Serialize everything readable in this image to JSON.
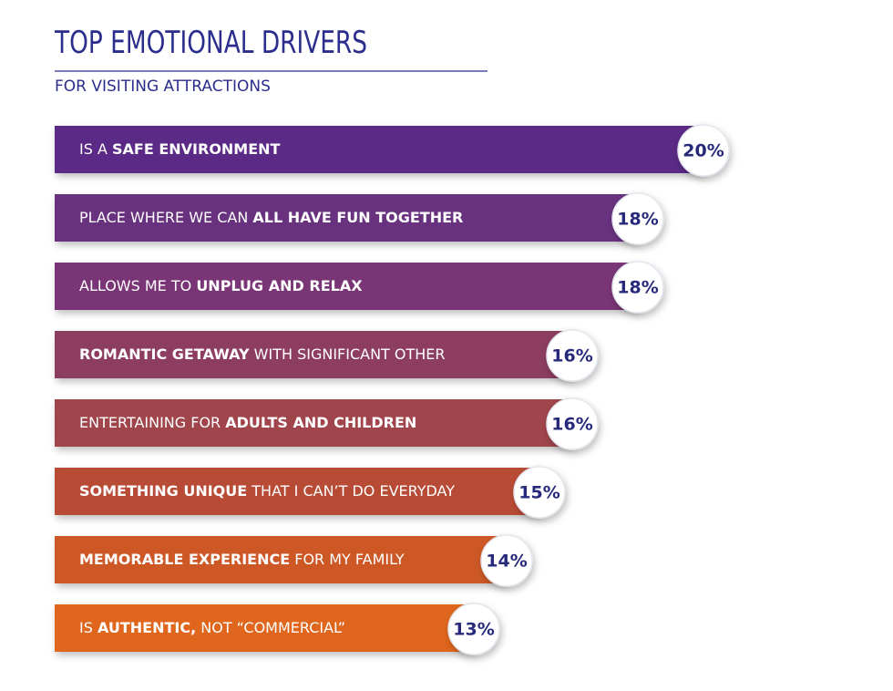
{
  "chart_data": {
    "type": "bar",
    "title": "TOP EMOTIONAL DRIVERS",
    "subtitle": "FOR VISITING ATTRACTIONS",
    "categories": [
      [
        {
          "text": "IS A ",
          "bold": false
        },
        {
          "text": "SAFE ENVIRONMENT",
          "bold": true
        }
      ],
      [
        {
          "text": "PLACE WHERE WE CAN ",
          "bold": false
        },
        {
          "text": "ALL HAVE FUN TOGETHER",
          "bold": true
        }
      ],
      [
        {
          "text": "ALLOWS ME TO ",
          "bold": false
        },
        {
          "text": "UNPLUG AND RELAX",
          "bold": true
        }
      ],
      [
        {
          "text": "ROMANTIC GETAWAY",
          "bold": true
        },
        {
          "text": " WITH SIGNIFICANT OTHER",
          "bold": false
        }
      ],
      [
        {
          "text": "ENTERTAINING FOR ",
          "bold": false
        },
        {
          "text": "ADULTS AND CHILDREN",
          "bold": true
        }
      ],
      [
        {
          "text": "SOMETHING UNIQUE",
          "bold": true
        },
        {
          "text": " THAT I CAN’T DO EVERYDAY",
          "bold": false
        }
      ],
      [
        {
          "text": "MEMORABLE EXPERIENCE",
          "bold": true
        },
        {
          "text": " FOR MY FAMILY",
          "bold": false
        }
      ],
      [
        {
          "text": "IS ",
          "bold": false
        },
        {
          "text": "AUTHENTIC,",
          "bold": true
        },
        {
          "text": " NOT “COMMERCIAL”",
          "bold": false
        }
      ]
    ],
    "values": [
      20,
      18,
      18,
      16,
      16,
      15,
      14,
      13
    ],
    "value_labels": [
      "20%",
      "18%",
      "18%",
      "16%",
      "16%",
      "15%",
      "14%",
      "13%"
    ],
    "colors": [
      "#5a2a86",
      "#67307f",
      "#793574",
      "#8c3d60",
      "#a0444c",
      "#b84c36",
      "#cd5828",
      "#df661f"
    ],
    "title_color": "#2b2e8c"
  }
}
